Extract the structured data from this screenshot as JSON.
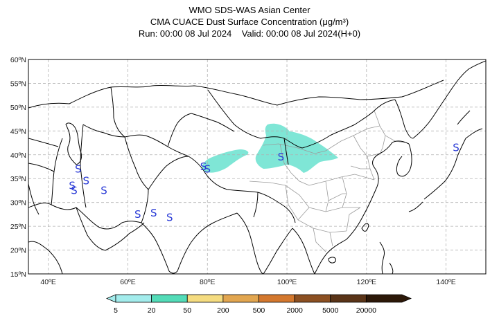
{
  "title": {
    "line1": "WMO SDS-WAS Asian Center",
    "line2": "CMA CUACE Dust Surface Concentration (μg/m³)",
    "line3": "Run: 00:00 08 Jul 2024    Valid: 00:00 08 Jul 2024(H+0)"
  },
  "map": {
    "lon_range": [
      35,
      150
    ],
    "lat_range": [
      15,
      60
    ],
    "lat_ticks": [
      {
        "value": 15,
        "label": "15ºN"
      },
      {
        "value": 20,
        "label": "20ºN"
      },
      {
        "value": 25,
        "label": "25ºN"
      },
      {
        "value": 30,
        "label": "30ºN"
      },
      {
        "value": 35,
        "label": "35ºN"
      },
      {
        "value": 40,
        "label": "40ºN"
      },
      {
        "value": 45,
        "label": "45ºN"
      },
      {
        "value": 50,
        "label": "50ºN"
      },
      {
        "value": 55,
        "label": "55ºN"
      },
      {
        "value": 60,
        "label": "60ºN"
      }
    ],
    "lon_ticks": [
      {
        "value": 40,
        "label": "40ºE"
      },
      {
        "value": 60,
        "label": "60ºE"
      },
      {
        "value": 80,
        "label": "80ºE"
      },
      {
        "value": 100,
        "label": "100ºE"
      },
      {
        "value": 120,
        "label": "120ºE"
      },
      {
        "value": 140,
        "label": "140ºE"
      }
    ],
    "grid": true,
    "dust_symbol": "S",
    "dust_symbols": [
      {
        "lon": 47.5,
        "lat": 37.0
      },
      {
        "lon": 46.0,
        "lat": 33.5
      },
      {
        "lon": 46.5,
        "lat": 32.5
      },
      {
        "lon": 49.5,
        "lat": 34.5
      },
      {
        "lon": 54.0,
        "lat": 32.5
      },
      {
        "lon": 62.5,
        "lat": 27.5
      },
      {
        "lon": 66.5,
        "lat": 27.8
      },
      {
        "lon": 70.5,
        "lat": 26.8
      },
      {
        "lon": 79.0,
        "lat": 37.5
      },
      {
        "lon": 80.0,
        "lat": 37.0
      },
      {
        "lon": 98.5,
        "lat": 39.5
      },
      {
        "lon": 142.5,
        "lat": 41.5
      }
    ],
    "colors": {
      "coast": "#000000",
      "province": "#9a9a9a",
      "grid": "#b0b0b0",
      "dust_fill": "#7fe6d6",
      "symbol": "#2a3bd6"
    }
  },
  "legend": {
    "labels": [
      "5",
      "20",
      "50",
      "200",
      "500",
      "2000",
      "5000",
      "20000"
    ],
    "colors": [
      "#a3ecec",
      "#53dcb8",
      "#f5dc80",
      "#e2a650",
      "#d4782e",
      "#8c5022",
      "#5a3418",
      "#2c1808"
    ]
  }
}
